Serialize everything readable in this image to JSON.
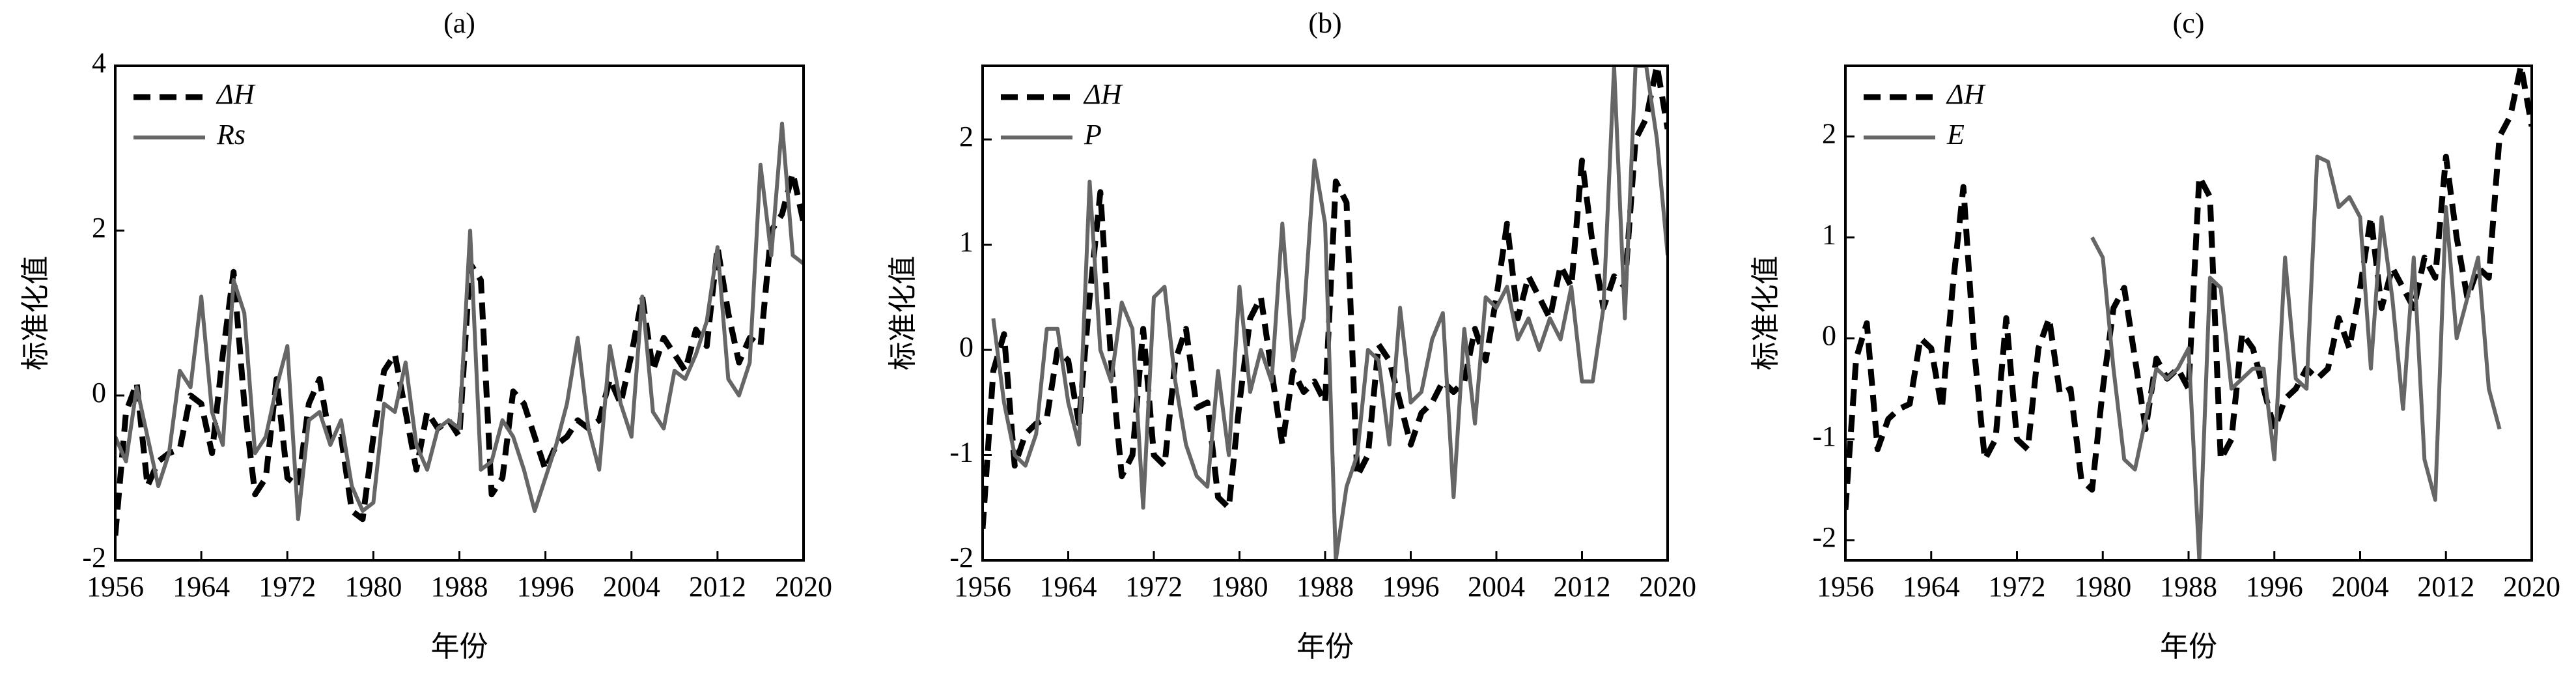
{
  "chart_data": [
    {
      "type": "line",
      "title": "(a)",
      "xlabel": "年份",
      "ylabel": "标准化值",
      "x": [
        1956,
        1957,
        1958,
        1959,
        1960,
        1961,
        1962,
        1963,
        1964,
        1965,
        1966,
        1967,
        1968,
        1969,
        1970,
        1971,
        1972,
        1973,
        1974,
        1975,
        1976,
        1977,
        1978,
        1979,
        1980,
        1981,
        1982,
        1983,
        1984,
        1985,
        1986,
        1987,
        1988,
        1989,
        1990,
        1991,
        1992,
        1993,
        1994,
        1995,
        1996,
        1997,
        1998,
        1999,
        2000,
        2001,
        2002,
        2003,
        2004,
        2005,
        2006,
        2007,
        2008,
        2009,
        2010,
        2011,
        2012,
        2013,
        2014,
        2015,
        2016,
        2017,
        2018,
        2019,
        2020
      ],
      "xlim": [
        1956,
        2020
      ],
      "xticks": [
        1956,
        1964,
        1972,
        1980,
        1988,
        1996,
        2004,
        2012,
        2020
      ],
      "ylim": [
        -2,
        4
      ],
      "yticks": [
        -2,
        0,
        2,
        4
      ],
      "legend": "upper left",
      "series": [
        {
          "name": "ΔH",
          "color": "#000000",
          "line_style": "dashed",
          "values": [
            -1.7,
            -0.2,
            0.15,
            -1.1,
            -0.8,
            -0.7,
            -0.65,
            0.0,
            -0.1,
            -0.7,
            0.5,
            1.5,
            -0.1,
            -1.2,
            -1.0,
            0.2,
            -1.0,
            -1.1,
            -0.1,
            0.2,
            -0.55,
            -0.5,
            -1.4,
            -1.5,
            -0.5,
            0.3,
            0.5,
            -0.2,
            -0.9,
            -0.2,
            -0.4,
            -0.3,
            -0.5,
            1.6,
            1.4,
            -1.2,
            -1.0,
            0.05,
            -0.1,
            -0.5,
            -0.9,
            -0.6,
            -0.5,
            -0.3,
            -0.4,
            -0.3,
            0.2,
            -0.1,
            0.5,
            1.2,
            0.3,
            0.7,
            0.5,
            0.3,
            0.8,
            0.6,
            1.8,
            1.0,
            0.4,
            0.7,
            0.6,
            2.0,
            2.2,
            2.7,
            2.1
          ]
        },
        {
          "name": "Rs",
          "color": "#666666",
          "line_style": "solid",
          "values": [
            -0.5,
            -0.8,
            0.1,
            -0.5,
            -1.1,
            -0.7,
            0.3,
            0.1,
            1.2,
            -0.2,
            -0.6,
            1.4,
            1.0,
            -0.7,
            -0.5,
            0.1,
            0.6,
            -1.5,
            -0.3,
            -0.2,
            -0.6,
            -0.3,
            -1.1,
            -1.4,
            -1.3,
            -0.1,
            -0.2,
            0.4,
            -0.6,
            -0.9,
            -0.4,
            -0.3,
            -0.4,
            2.0,
            -0.9,
            -0.8,
            -0.3,
            -0.5,
            -0.9,
            -1.4,
            -1.0,
            -0.6,
            -0.1,
            0.7,
            -0.4,
            -0.9,
            0.6,
            -0.1,
            -0.5,
            1.2,
            -0.2,
            -0.4,
            0.3,
            0.2,
            0.5,
            0.9,
            1.8,
            0.2,
            0.0,
            0.4,
            2.8,
            1.7,
            3.3,
            1.7,
            1.6
          ]
        }
      ]
    },
    {
      "type": "line",
      "title": "(b)",
      "xlabel": "年份",
      "ylabel": "标准化值",
      "x": [
        1956,
        1957,
        1958,
        1959,
        1960,
        1961,
        1962,
        1963,
        1964,
        1965,
        1966,
        1967,
        1968,
        1969,
        1970,
        1971,
        1972,
        1973,
        1974,
        1975,
        1976,
        1977,
        1978,
        1979,
        1980,
        1981,
        1982,
        1983,
        1984,
        1985,
        1986,
        1987,
        1988,
        1989,
        1990,
        1991,
        1992,
        1993,
        1994,
        1995,
        1996,
        1997,
        1998,
        1999,
        2000,
        2001,
        2002,
        2003,
        2004,
        2005,
        2006,
        2007,
        2008,
        2009,
        2010,
        2011,
        2012,
        2013,
        2014,
        2015,
        2016,
        2017,
        2018,
        2019,
        2020
      ],
      "xlim": [
        1956,
        2020
      ],
      "xticks": [
        1956,
        1964,
        1972,
        1980,
        1988,
        1996,
        2004,
        2012,
        2020
      ],
      "ylim": [
        -2,
        2.7
      ],
      "yticks": [
        -2,
        -1,
        0,
        1,
        2
      ],
      "legend": "upper left",
      "series": [
        {
          "name": "ΔH",
          "color": "#000000",
          "line_style": "dashed",
          "values": [
            -1.7,
            -0.2,
            0.15,
            -1.1,
            -0.8,
            -0.7,
            -0.65,
            0.0,
            -0.1,
            -0.7,
            0.5,
            1.5,
            -0.1,
            -1.2,
            -1.0,
            0.2,
            -1.0,
            -1.1,
            -0.1,
            0.2,
            -0.55,
            -0.5,
            -1.4,
            -1.5,
            -0.5,
            0.3,
            0.5,
            -0.2,
            -0.9,
            -0.2,
            -0.4,
            -0.3,
            -0.5,
            1.6,
            1.4,
            -1.2,
            -1.0,
            0.05,
            -0.1,
            -0.5,
            -0.9,
            -0.6,
            -0.5,
            -0.3,
            -0.4,
            -0.3,
            0.2,
            -0.1,
            0.5,
            1.2,
            0.3,
            0.7,
            0.5,
            0.3,
            0.8,
            0.6,
            1.8,
            1.0,
            0.4,
            0.7,
            0.6,
            2.0,
            2.2,
            2.7,
            2.1
          ]
        },
        {
          "name": "P",
          "color": "#666666",
          "line_style": "solid",
          "values": [
            null,
            0.3,
            -0.5,
            -1.0,
            -1.1,
            -0.8,
            0.2,
            0.2,
            -0.5,
            -0.9,
            1.6,
            0.0,
            -0.3,
            0.45,
            0.2,
            -1.5,
            0.5,
            0.6,
            -0.3,
            -0.9,
            -1.2,
            -1.3,
            -0.2,
            -1.0,
            0.6,
            -0.4,
            0.0,
            -0.3,
            1.2,
            -0.1,
            0.3,
            1.8,
            1.2,
            -2.0,
            -1.3,
            -1.0,
            0.0,
            -0.1,
            -0.9,
            0.4,
            -0.5,
            -0.4,
            0.1,
            0.35,
            -1.4,
            0.2,
            -0.7,
            0.5,
            0.4,
            0.6,
            0.1,
            0.3,
            0.0,
            0.3,
            0.1,
            0.6,
            -0.3,
            -0.3,
            0.4,
            2.7,
            0.3,
            2.7,
            2.7,
            2.0,
            0.9
          ]
        }
      ]
    },
    {
      "type": "line",
      "title": "(c)",
      "xlabel": "年份",
      "ylabel": "标准化值",
      "x": [
        1956,
        1957,
        1958,
        1959,
        1960,
        1961,
        1962,
        1963,
        1964,
        1965,
        1966,
        1967,
        1968,
        1969,
        1970,
        1971,
        1972,
        1973,
        1974,
        1975,
        1976,
        1977,
        1978,
        1979,
        1980,
        1981,
        1982,
        1983,
        1984,
        1985,
        1986,
        1987,
        1988,
        1989,
        1990,
        1991,
        1992,
        1993,
        1994,
        1995,
        1996,
        1997,
        1998,
        1999,
        2000,
        2001,
        2002,
        2003,
        2004,
        2005,
        2006,
        2007,
        2008,
        2009,
        2010,
        2011,
        2012,
        2013,
        2014,
        2015,
        2016,
        2017,
        2018,
        2019,
        2020
      ],
      "xlim": [
        1956,
        2020
      ],
      "xticks": [
        1956,
        1964,
        1972,
        1980,
        1988,
        1996,
        2004,
        2012,
        2020
      ],
      "ylim": [
        -2.2,
        2.7
      ],
      "yticks": [
        -2,
        -1,
        0,
        1,
        2
      ],
      "legend": "upper left",
      "series": [
        {
          "name": "ΔH",
          "color": "#000000",
          "line_style": "dashed",
          "values": [
            -1.7,
            -0.2,
            0.15,
            -1.1,
            -0.8,
            -0.7,
            -0.65,
            0.0,
            -0.1,
            -0.7,
            0.5,
            1.5,
            -0.1,
            -1.2,
            -1.0,
            0.2,
            -1.0,
            -1.1,
            -0.1,
            0.2,
            -0.55,
            -0.5,
            -1.4,
            -1.5,
            -0.5,
            0.3,
            0.5,
            -0.2,
            -0.9,
            -0.2,
            -0.4,
            -0.3,
            -0.5,
            1.6,
            1.4,
            -1.2,
            -1.0,
            0.05,
            -0.1,
            -0.5,
            -0.9,
            -0.6,
            -0.5,
            -0.3,
            -0.4,
            -0.3,
            0.2,
            -0.1,
            0.5,
            1.2,
            0.3,
            0.7,
            0.5,
            0.3,
            0.8,
            0.6,
            1.8,
            1.0,
            0.4,
            0.7,
            0.6,
            2.0,
            2.2,
            2.7,
            2.1
          ]
        },
        {
          "name": "E",
          "color": "#666666",
          "line_style": "solid",
          "values": [
            null,
            null,
            null,
            null,
            null,
            null,
            null,
            null,
            null,
            null,
            null,
            null,
            null,
            null,
            null,
            null,
            null,
            null,
            null,
            null,
            null,
            null,
            null,
            1.0,
            0.8,
            -0.3,
            -1.2,
            -1.3,
            -0.8,
            -0.3,
            -0.4,
            -0.3,
            -0.1,
            -2.2,
            0.6,
            0.5,
            -0.5,
            -0.4,
            -0.3,
            -0.3,
            -1.2,
            0.8,
            -0.4,
            -0.5,
            1.8,
            1.75,
            1.3,
            1.4,
            1.2,
            -0.3,
            1.2,
            0.4,
            -0.7,
            0.8,
            -1.2,
            -1.6,
            1.3,
            0.0,
            0.4,
            0.8,
            -0.5,
            -0.9,
            null,
            null,
            null
          ]
        }
      ]
    }
  ]
}
